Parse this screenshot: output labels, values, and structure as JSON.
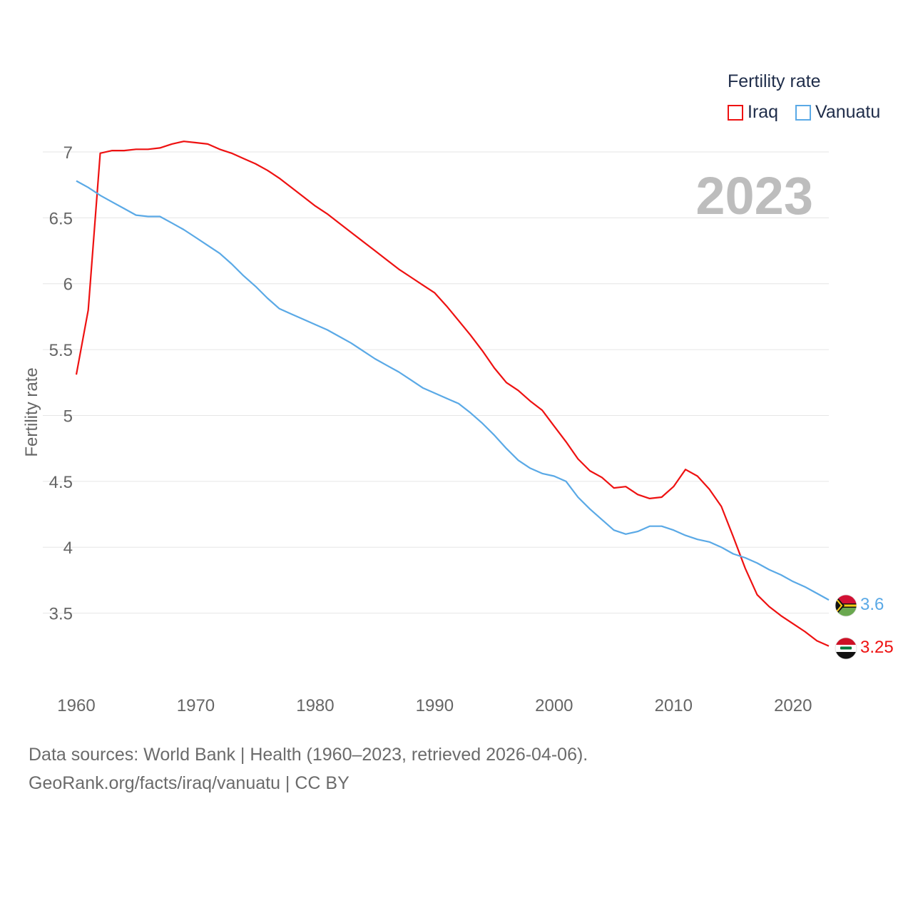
{
  "legend": {
    "title": "Fertility rate",
    "items": [
      {
        "label": "Iraq",
        "color": "#ee1111"
      },
      {
        "label": "Vanuatu",
        "color": "#5aa9e6"
      }
    ]
  },
  "year_label": "2023",
  "end_labels": {
    "vanuatu": "3.6",
    "iraq": "3.25"
  },
  "footer": {
    "line1": "Data sources: World Bank | Health (1960–2023, retrieved 2026-04-06).",
    "line2": "GeoRank.org/facts/iraq/vanuatu | CC BY"
  },
  "colors": {
    "iraq": "#ee1111",
    "vanuatu": "#5aa9e6",
    "grid": "#e6e6e6",
    "axis_text": "#666666",
    "year": "#bdbdbd"
  },
  "chart_data": {
    "type": "line",
    "title": "",
    "xlabel": "",
    "ylabel": "Fertility rate",
    "xlim": [
      1960,
      2023
    ],
    "ylim": [
      3.0,
      7.2
    ],
    "x_ticks": [
      1960,
      1970,
      1980,
      1990,
      2000,
      2010,
      2020
    ],
    "y_ticks": [
      3.5,
      4,
      4.5,
      5,
      5.5,
      6,
      6.5,
      7
    ],
    "y_tick_labels": [
      "3.5",
      "4",
      "4.5",
      "5",
      "5.5",
      "6",
      "6.5",
      "7"
    ],
    "x": [
      1960,
      1961,
      1962,
      1963,
      1964,
      1965,
      1966,
      1967,
      1968,
      1969,
      1970,
      1971,
      1972,
      1973,
      1974,
      1975,
      1976,
      1977,
      1978,
      1979,
      1980,
      1981,
      1982,
      1983,
      1984,
      1985,
      1986,
      1987,
      1988,
      1989,
      1990,
      1991,
      1992,
      1993,
      1994,
      1995,
      1996,
      1997,
      1998,
      1999,
      2000,
      2001,
      2002,
      2003,
      2004,
      2005,
      2006,
      2007,
      2008,
      2009,
      2010,
      2011,
      2012,
      2013,
      2014,
      2015,
      2016,
      2017,
      2018,
      2019,
      2020,
      2021,
      2022,
      2023
    ],
    "series": [
      {
        "name": "Iraq",
        "values": [
          5.31,
          5.8,
          6.99,
          7.01,
          7.01,
          7.02,
          7.02,
          7.03,
          7.06,
          7.08,
          7.07,
          7.06,
          7.02,
          6.99,
          6.95,
          6.91,
          6.86,
          6.8,
          6.73,
          6.66,
          6.59,
          6.53,
          6.46,
          6.39,
          6.32,
          6.25,
          6.18,
          6.11,
          6.05,
          5.99,
          5.93,
          5.83,
          5.72,
          5.61,
          5.49,
          5.36,
          5.25,
          5.19,
          5.11,
          5.04,
          4.92,
          4.8,
          4.67,
          4.58,
          4.53,
          4.45,
          4.46,
          4.4,
          4.37,
          4.38,
          4.46,
          4.59,
          4.54,
          4.44,
          4.31,
          4.08,
          3.84,
          3.64,
          3.55,
          3.48,
          3.42,
          3.36,
          3.29,
          3.25
        ]
      },
      {
        "name": "Vanuatu",
        "values": [
          6.78,
          6.73,
          6.67,
          6.62,
          6.57,
          6.52,
          6.51,
          6.51,
          6.46,
          6.41,
          6.35,
          6.29,
          6.23,
          6.15,
          6.06,
          5.98,
          5.89,
          5.81,
          5.77,
          5.73,
          5.69,
          5.65,
          5.6,
          5.55,
          5.49,
          5.43,
          5.38,
          5.33,
          5.27,
          5.21,
          5.17,
          5.13,
          5.09,
          5.02,
          4.94,
          4.85,
          4.75,
          4.66,
          4.6,
          4.56,
          4.54,
          4.5,
          4.38,
          4.29,
          4.21,
          4.13,
          4.1,
          4.12,
          4.16,
          4.16,
          4.13,
          4.09,
          4.06,
          4.04,
          4.0,
          3.95,
          3.92,
          3.88,
          3.83,
          3.79,
          3.74,
          3.7,
          3.65,
          3.6
        ]
      }
    ]
  }
}
